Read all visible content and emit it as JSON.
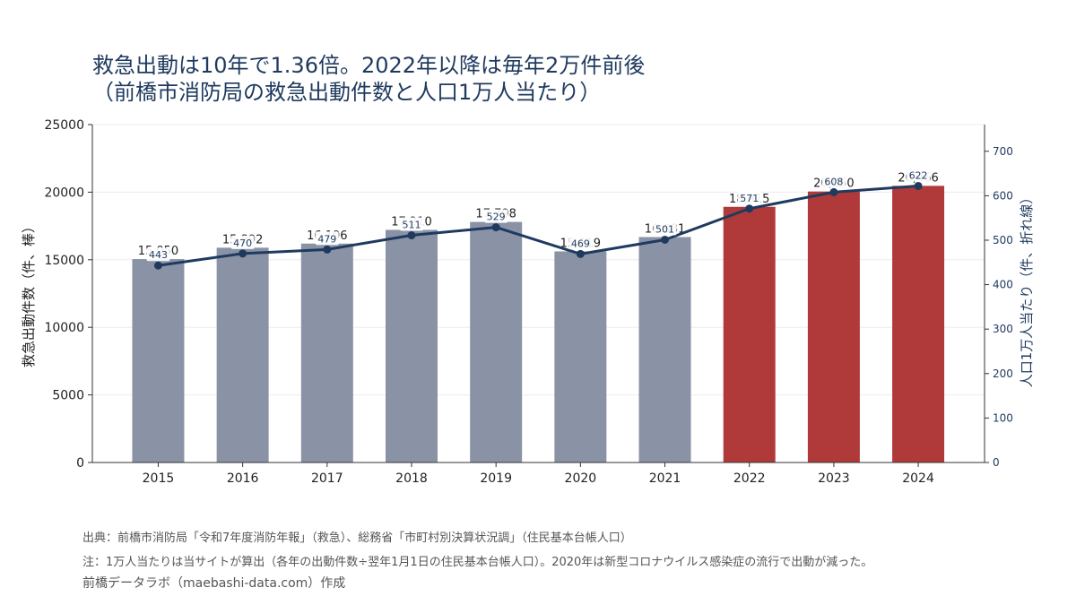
{
  "title": "救急出動は10年で1.36倍。2022年以降は毎年2万件前後\n（前橋市消防局の救急出動件数と人口1万人当たり）",
  "chart_data": {
    "type": "bar",
    "categories": [
      "2015",
      "2016",
      "2017",
      "2018",
      "2019",
      "2020",
      "2021",
      "2022",
      "2023",
      "2024"
    ],
    "series": [
      {
        "type": "bar",
        "axis": "left",
        "values": [
          15050,
          15892,
          16196,
          17210,
          17798,
          15619,
          16681,
          18915,
          20050,
          20466
        ],
        "value_labels": [
          "15,050",
          "15,892",
          "16,196",
          "17,210",
          "17,798",
          "15,619",
          "16,681",
          "18,915",
          "20,050",
          "20,466"
        ],
        "highlight_from": "2022"
      },
      {
        "type": "line",
        "axis": "right",
        "values": [
          443,
          470,
          479,
          511,
          529,
          469,
          501,
          571,
          608,
          622
        ]
      }
    ],
    "ylabel": "救急出動件数（件、棒）",
    "y2label": "人口1万人当たり（件、折れ線）",
    "ylim": [
      0,
      25000
    ],
    "y2lim": [
      0,
      760
    ],
    "yticks": [
      0,
      5000,
      10000,
      15000,
      20000,
      25000
    ],
    "y2ticks": [
      0,
      100,
      200,
      300,
      400,
      500,
      600,
      700
    ],
    "grid": true,
    "colors": {
      "bar_default": "#8a93a6",
      "bar_highlight": "#b0393a",
      "line": "#1f3a5f",
      "title": "#1f3a5f"
    }
  },
  "footer": {
    "source": "出典：前橋市消防局「令和7年度消防年報」（救急）、総務省「市町村別決算状況調」（住民基本台帳人口）",
    "note": "注：1万人当たりは当サイトが算出（各年の出動件数÷翌年1月1日の住民基本台帳人口）。2020年は新型コロナウイルス感染症の流行で出動が減った。",
    "credit": "前橋データラボ（maebashi-data.com）作成"
  }
}
